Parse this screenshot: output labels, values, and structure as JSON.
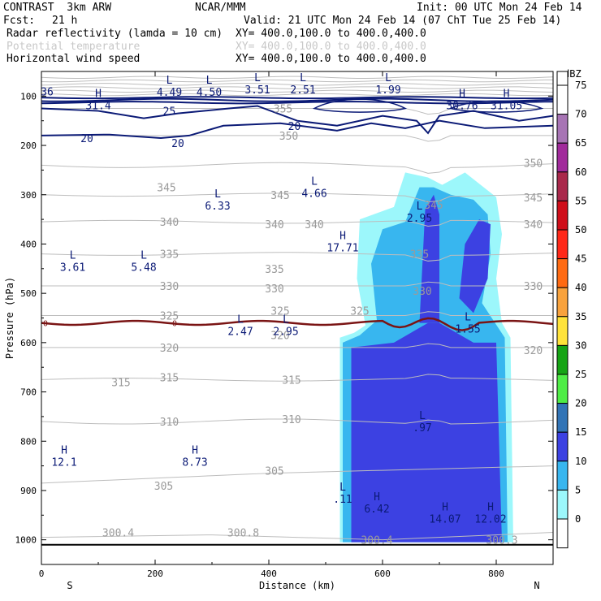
{
  "header": {
    "title": "CONTRAST  3km ARW",
    "center": "NCAR/MMM",
    "init": "Init: 00 UTC Mon 24 Feb 14",
    "fcst_label": "Fcst:",
    "fcst_value": "21 h",
    "valid": "Valid: 21 UTC Mon 24 Feb 14 (07 ChT Tue 25 Feb 14)",
    "fields": [
      {
        "name": "Radar reflectivity (lamda = 10 cm)",
        "xy": "XY= 400.0,100.0 to 400.0,400.0"
      },
      {
        "name": "Potential temperature",
        "xy": "XY= 400.0,100.0 to 400.0,400.0"
      },
      {
        "name": "Horizontal wind speed",
        "xy": "XY= 400.0,100.0 to 400.0,400.0"
      }
    ]
  },
  "chart_data": {
    "type": "cross-section",
    "xlabel": "Distance (km)",
    "ylabel": "Pressure (hPa)",
    "xlim": [
      0,
      900
    ],
    "ylim": [
      1050,
      50
    ],
    "x_ticks": [
      "0",
      "200",
      "400",
      "600",
      "800"
    ],
    "x_tick_values": [
      0,
      200,
      400,
      600,
      800
    ],
    "y_ticks": [
      "100",
      "200",
      "300",
      "400",
      "500",
      "600",
      "700",
      "800",
      "900",
      "1000"
    ],
    "y_tick_values": [
      100,
      200,
      300,
      400,
      500,
      600,
      700,
      800,
      900,
      1000
    ],
    "axis_ends": {
      "left": "S",
      "right": "N"
    },
    "colorbar": {
      "unit": "dBZ",
      "levels": [
        "0",
        "5",
        "10",
        "15",
        "20",
        "25",
        "30",
        "35",
        "40",
        "45",
        "50",
        "55",
        "60",
        "65",
        "70",
        "75"
      ],
      "colors": [
        "#ffffff",
        "#9cf7fb",
        "#38b6ef",
        "#3c41e2",
        "#3274b6",
        "#4fed46",
        "#16a415",
        "#ffe33a",
        "#f8a23d",
        "#ff6a12",
        "#ff2818",
        "#cf0e1a",
        "#a9284b",
        "#a12a9b",
        "#a774b4",
        "#ffffff"
      ]
    },
    "potential_temperature_labels": [
      {
        "text": "355",
        "x": 425,
        "p": 125
      },
      {
        "text": "350",
        "x": 435,
        "p": 180
      },
      {
        "text": "350",
        "x": 865,
        "p": 235
      },
      {
        "text": "345",
        "x": 220,
        "p": 285
      },
      {
        "text": "345",
        "x": 420,
        "p": 300
      },
      {
        "text": "345",
        "x": 690,
        "p": 320
      },
      {
        "text": "345",
        "x": 865,
        "p": 305
      },
      {
        "text": "340",
        "x": 225,
        "p": 355
      },
      {
        "text": "340",
        "x": 410,
        "p": 360
      },
      {
        "text": "340",
        "x": 480,
        "p": 360
      },
      {
        "text": "340",
        "x": 865,
        "p": 360
      },
      {
        "text": "335",
        "x": 225,
        "p": 420
      },
      {
        "text": "335",
        "x": 410,
        "p": 450
      },
      {
        "text": "335",
        "x": 665,
        "p": 420
      },
      {
        "text": "330",
        "x": 225,
        "p": 485
      },
      {
        "text": "330",
        "x": 410,
        "p": 490
      },
      {
        "text": "330",
        "x": 670,
        "p": 495
      },
      {
        "text": "330",
        "x": 865,
        "p": 485
      },
      {
        "text": "325",
        "x": 225,
        "p": 545
      },
      {
        "text": "325",
        "x": 420,
        "p": 535
      },
      {
        "text": "325",
        "x": 560,
        "p": 535
      },
      {
        "text": "320",
        "x": 225,
        "p": 610
      },
      {
        "text": "320",
        "x": 420,
        "p": 585
      },
      {
        "text": "320",
        "x": 865,
        "p": 615
      },
      {
        "text": "315",
        "x": 140,
        "p": 680
      },
      {
        "text": "315",
        "x": 225,
        "p": 670
      },
      {
        "text": "315",
        "x": 440,
        "p": 675
      },
      {
        "text": "310",
        "x": 225,
        "p": 760
      },
      {
        "text": "310",
        "x": 440,
        "p": 755
      },
      {
        "text": "305",
        "x": 215,
        "p": 890
      },
      {
        "text": "305",
        "x": 410,
        "p": 860
      },
      {
        "text": "300.4",
        "x": 135,
        "p": 985
      },
      {
        "text": "300.8",
        "x": 355,
        "p": 985
      },
      {
        "text": "300.4",
        "x": 590,
        "p": 1000
      },
      {
        "text": "300.3",
        "x": 810,
        "p": 1000
      }
    ],
    "wind_speed_labels": [
      {
        "text": "25",
        "x": 225,
        "p": 130
      },
      {
        "text": "20",
        "x": 80,
        "p": 185
      },
      {
        "text": "20",
        "x": 240,
        "p": 195
      },
      {
        "text": "20",
        "x": 445,
        "p": 160
      },
      {
        "text": "36",
        "x": 10,
        "p": 90
      }
    ],
    "extrema_labels": [
      {
        "type": "L",
        "value": "4.49",
        "x": 225,
        "p": 80
      },
      {
        "type": "L",
        "value": "4.50",
        "x": 295,
        "p": 80
      },
      {
        "type": "L",
        "value": "3.51",
        "x": 380,
        "p": 75
      },
      {
        "type": "L",
        "value": "2.51",
        "x": 460,
        "p": 75
      },
      {
        "type": "L",
        "value": "1.99",
        "x": 610,
        "p": 75
      },
      {
        "type": "H",
        "value": "31.4",
        "x": 100,
        "p": 107
      },
      {
        "type": "H",
        "value": "30.76",
        "x": 740,
        "p": 107
      },
      {
        "type": "H",
        "value": "31.05",
        "x": 818,
        "p": 107
      },
      {
        "type": "L",
        "value": "6.33",
        "x": 310,
        "p": 310
      },
      {
        "type": "L",
        "value": "4.66",
        "x": 480,
        "p": 285
      },
      {
        "type": "L",
        "value": "2.95",
        "x": 665,
        "p": 335
      },
      {
        "type": "H",
        "value": "17.71",
        "x": 530,
        "p": 395
      },
      {
        "type": "L",
        "value": "3.61",
        "x": 55,
        "p": 435
      },
      {
        "type": "L",
        "value": "5.48",
        "x": 180,
        "p": 435
      },
      {
        "type": "L",
        "value": "2.47",
        "x": 350,
        "p": 565
      },
      {
        "type": "L",
        "value": "2.95",
        "x": 430,
        "p": 565
      },
      {
        "type": "L",
        "value": "1.55",
        "x": 750,
        "p": 560
      },
      {
        "type": "L",
        "value": ".97",
        "x": 670,
        "p": 760
      },
      {
        "type": "H",
        "value": "12.1",
        "x": 40,
        "p": 830
      },
      {
        "type": "H",
        "value": "8.73",
        "x": 270,
        "p": 830
      },
      {
        "type": "L",
        "value": ".11",
        "x": 530,
        "p": 905
      },
      {
        "type": "H",
        "value": "6.42",
        "x": 590,
        "p": 925
      },
      {
        "type": "H",
        "value": "14.07",
        "x": 710,
        "p": 945
      },
      {
        "type": "H",
        "value": "12.02",
        "x": 790,
        "p": 945
      }
    ],
    "zero_contour_label": "0"
  }
}
